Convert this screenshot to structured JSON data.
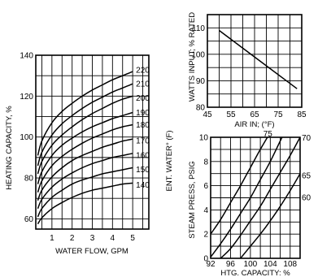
{
  "chart_data": [
    {
      "type": "line",
      "id": "heating",
      "xlabel": "WATER FLOW, GPM",
      "ylabel": "HEATING CAPACITY, %",
      "y2label": "ENT. WATER° (F)",
      "xlim": [
        0.2,
        5.8
      ],
      "ylim": [
        55,
        140
      ],
      "x_ticks": [
        1,
        2,
        3,
        4,
        5
      ],
      "y_ticks": [
        60,
        80,
        100,
        120,
        140
      ],
      "x_grid": [
        0.5,
        1,
        1.5,
        2,
        2.5,
        3,
        3.5,
        4,
        4.5,
        5,
        5.5
      ],
      "y_grid": [
        60,
        70,
        80,
        90,
        100,
        110,
        120,
        130,
        140
      ],
      "grid": true,
      "x": [
        0.3,
        0.5,
        1,
        1.5,
        2,
        2.5,
        3,
        3.5,
        4,
        4.5,
        5
      ],
      "series": [
        {
          "name": "220",
          "values": [
            91,
            98,
            107,
            112.5,
            116.5,
            120,
            123,
            125.5,
            128,
            130,
            132
          ]
        },
        {
          "name": "210",
          "values": [
            86,
            92.5,
            101,
            106.5,
            110.5,
            114,
            117,
            119.5,
            122,
            124,
            126
          ]
        },
        {
          "name": "200",
          "values": [
            82,
            88,
            96,
            101,
            105,
            108.5,
            111.5,
            114,
            116.5,
            118.5,
            120
          ]
        },
        {
          "name": "190",
          "values": [
            77,
            83,
            91,
            96,
            99.5,
            102.5,
            105,
            107,
            109,
            110.5,
            112
          ]
        },
        {
          "name": "180",
          "values": [
            73,
            78.5,
            86,
            90.5,
            94,
            97,
            99.5,
            101.5,
            103.5,
            105,
            106
          ]
        },
        {
          "name": "170",
          "values": [
            69,
            74,
            80.5,
            85,
            88.5,
            91,
            93,
            95,
            96.5,
            98,
            99
          ]
        },
        {
          "name": "160",
          "values": [
            65,
            69.5,
            75.5,
            79.5,
            82.5,
            85,
            87,
            88.5,
            90,
            91,
            92
          ]
        },
        {
          "name": "150",
          "values": [
            61,
            65,
            70.5,
            74,
            77,
            79,
            80.5,
            82,
            83,
            84,
            85
          ]
        },
        {
          "name": "140",
          "values": [
            57.5,
            60.5,
            65,
            68,
            70.5,
            72.5,
            74,
            75,
            76,
            77,
            77.5
          ]
        }
      ]
    },
    {
      "type": "line",
      "id": "watts",
      "xlabel": "AIR IN; (°F)",
      "ylabel": "WATTS INPUT; % RATED",
      "xlim": [
        45,
        85
      ],
      "ylim": [
        80,
        115
      ],
      "x_ticks": [
        45,
        55,
        65,
        75,
        85
      ],
      "y_ticks": [
        80,
        90,
        100,
        110
      ],
      "x_grid": [
        45,
        50,
        55,
        60,
        65,
        70,
        75,
        80,
        85
      ],
      "y_grid": [
        80,
        85,
        90,
        95,
        100,
        105,
        110,
        115
      ],
      "grid": true,
      "x": [
        50,
        83
      ],
      "series": [
        {
          "name": "",
          "values": [
            109,
            87
          ]
        }
      ]
    },
    {
      "type": "line",
      "id": "steam",
      "xlabel": "HTG. CAPACITY: %",
      "ylabel": "STEAM PRESS, PSIG",
      "xlim": [
        92,
        110
      ],
      "ylim": [
        0,
        10
      ],
      "x_ticks": [
        92,
        96,
        100,
        104,
        108
      ],
      "y_ticks": [
        0,
        2,
        4,
        6,
        8,
        10
      ],
      "x_grid": [
        92,
        94,
        96,
        98,
        100,
        102,
        104,
        106,
        108,
        110
      ],
      "y_grid": [
        0,
        1,
        2,
        3,
        4,
        5,
        6,
        7,
        8,
        9,
        10
      ],
      "grid": true,
      "x": [
        92,
        94,
        96,
        98,
        100,
        102,
        104,
        106,
        108,
        110
      ],
      "series": [
        {
          "name": "75",
          "values": [
            2.0,
            3.2,
            4.6,
            6.0,
            7.5,
            9.0,
            10.4,
            null,
            null,
            null
          ]
        },
        {
          "name": "70",
          "values": [
            0.1,
            1.2,
            2.4,
            3.7,
            5.0,
            6.5,
            8.0,
            9.7,
            11.4,
            null
          ]
        },
        {
          "name": "65",
          "values": [
            null,
            0,
            0.8,
            1.9,
            3.1,
            4.3,
            5.7,
            7.1,
            8.5,
            10.0
          ]
        },
        {
          "name": "60",
          "values": [
            null,
            null,
            null,
            0,
            1.0,
            2.0,
            3.1,
            4.3,
            5.6,
            7.0
          ]
        }
      ]
    }
  ]
}
